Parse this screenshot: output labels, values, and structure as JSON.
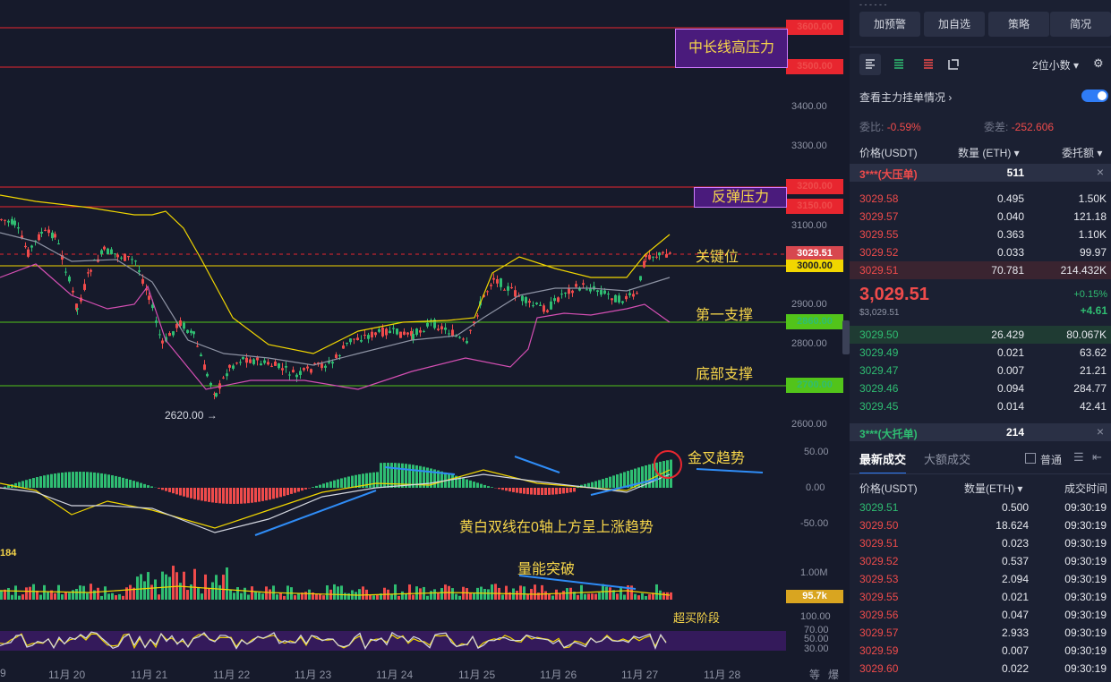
{
  "chart": {
    "price_tags": [
      {
        "label": "3600.00",
        "kind": "red"
      },
      {
        "label": "3500.00",
        "kind": "red"
      },
      {
        "label": "3200.00",
        "kind": "red"
      },
      {
        "label": "3150.00",
        "kind": "red"
      },
      {
        "label": "3029.51",
        "kind": "cur"
      },
      {
        "label": "3000.00",
        "kind": "yellow"
      },
      {
        "label": "2860.00",
        "kind": "green"
      },
      {
        "label": "2700.00",
        "kind": "green"
      }
    ],
    "y_axis": [
      "3400.00",
      "3300.00",
      "3100.00",
      "2900.00",
      "2800.00",
      "2600.00"
    ],
    "macd_axis": [
      "50.00",
      "0.00",
      "-50.00"
    ],
    "vol_axis": "1.00M",
    "vol_tag": "95.7k",
    "vol_left": "184",
    "rsi_axis": [
      "100.00",
      "70.00",
      "50.00",
      "30.00"
    ],
    "x_axis": [
      "9",
      "11月 20",
      "11月 21",
      "11月 22",
      "11月 23",
      "11月 24",
      "11月 25",
      "11月 26",
      "11月 27",
      "11月 28"
    ],
    "corner": [
      "等",
      "爆"
    ],
    "low_marker": "2620.00 →",
    "annotations": {
      "mid_long_resistance": "中长线高压力",
      "rebound_resistance": "反弹压力",
      "key_level": "关键位",
      "first_support": "第一支撑",
      "bottom_support": "底部支撑",
      "golden_cross": "金叉趋势",
      "macd_note": "黄白双线在0轴上方呈上涨趋势",
      "volume_breakout": "量能突破",
      "overbought": "超买阶段"
    }
  },
  "panel": {
    "top_buttons": [
      "加预警",
      "加自选",
      "策略",
      "简况"
    ],
    "decimals": "2位小数",
    "main_orders_link": "查看主力挂单情况",
    "ratio_label": "委比:",
    "ratio_value": "-0.59%",
    "diff_label": "委差:",
    "diff_value": "-252.606",
    "book_headers": [
      "价格(USDT)",
      "数量 (ETH)",
      "委托额"
    ],
    "big_ask": {
      "label": "3***(大压单)",
      "qty": "511"
    },
    "asks": [
      {
        "price": "3029.58",
        "qty": "0.495",
        "total": "1.50K"
      },
      {
        "price": "3029.57",
        "qty": "0.040",
        "total": "121.18"
      },
      {
        "price": "3029.55",
        "qty": "0.363",
        "total": "1.10K"
      },
      {
        "price": "3029.52",
        "qty": "0.033",
        "total": "99.97"
      },
      {
        "price": "3029.51",
        "qty": "70.781",
        "total": "214.432K"
      }
    ],
    "last_price": "3,029.51",
    "last_price_usd": "$3,029.51",
    "change_pct": "+0.15%",
    "change_abs": "+4.61",
    "bids": [
      {
        "price": "3029.50",
        "qty": "26.429",
        "total": "80.067K"
      },
      {
        "price": "3029.49",
        "qty": "0.021",
        "total": "63.62"
      },
      {
        "price": "3029.47",
        "qty": "0.007",
        "total": "21.21"
      },
      {
        "price": "3029.46",
        "qty": "0.094",
        "total": "284.77"
      },
      {
        "price": "3029.45",
        "qty": "0.014",
        "total": "42.41"
      }
    ],
    "big_bid": {
      "label": "3***(大托单)",
      "qty": "214"
    },
    "trade_tabs": [
      "最新成交",
      "大额成交"
    ],
    "normal_label": "普通",
    "trade_headers": [
      "价格(USDT)",
      "数量(ETH)",
      "成交时间"
    ],
    "trades": [
      {
        "price": "3029.51",
        "qty": "0.500",
        "time": "09:30:19",
        "side": "buy"
      },
      {
        "price": "3029.50",
        "qty": "18.624",
        "time": "09:30:19",
        "side": "sell"
      },
      {
        "price": "3029.51",
        "qty": "0.023",
        "time": "09:30:19",
        "side": "sell"
      },
      {
        "price": "3029.52",
        "qty": "0.537",
        "time": "09:30:19",
        "side": "sell"
      },
      {
        "price": "3029.53",
        "qty": "2.094",
        "time": "09:30:19",
        "side": "sell"
      },
      {
        "price": "3029.55",
        "qty": "0.021",
        "time": "09:30:19",
        "side": "sell"
      },
      {
        "price": "3029.56",
        "qty": "0.047",
        "time": "09:30:19",
        "side": "sell"
      },
      {
        "price": "3029.57",
        "qty": "2.933",
        "time": "09:30:19",
        "side": "sell"
      },
      {
        "price": "3029.59",
        "qty": "0.007",
        "time": "09:30:19",
        "side": "sell"
      },
      {
        "price": "3029.60",
        "qty": "0.022",
        "time": "09:30:19",
        "side": "sell"
      }
    ],
    "colors": {
      "up": "#2fbd72",
      "down": "#ef4b4b",
      "accent": "#2f7cf6"
    }
  }
}
